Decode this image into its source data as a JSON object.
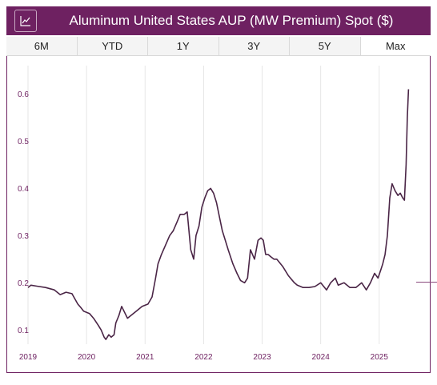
{
  "header": {
    "title": "Aluminum United States AUP (MW Premium) Spot ($)",
    "icon": "line-chart-icon"
  },
  "tabs": [
    {
      "label": "6M",
      "active": false
    },
    {
      "label": "YTD",
      "active": false
    },
    {
      "label": "1Y",
      "active": false
    },
    {
      "label": "3Y",
      "active": false
    },
    {
      "label": "5Y",
      "active": false
    },
    {
      "label": "Max",
      "active": true
    }
  ],
  "colors": {
    "brand": "#6e2161",
    "line": "#4a2546",
    "tick_label": "#6e2161",
    "grid": "#e6e6e6"
  },
  "chart_data": {
    "type": "line",
    "title": "",
    "xlabel": "",
    "ylabel": "",
    "x_ticks": [
      "2019",
      "2020",
      "2021",
      "2022",
      "2023",
      "2024",
      "2025"
    ],
    "y_ticks": [
      0.1,
      0.2,
      0.3,
      0.4,
      0.5,
      0.6
    ],
    "xlim": [
      2019.0,
      2025.7
    ],
    "ylim": [
      0.07,
      0.66
    ],
    "grid": true,
    "legend": "none",
    "series": [
      {
        "x": [
          2019.0,
          2019.05,
          2019.15,
          2019.3,
          2019.45,
          2019.55,
          2019.65,
          2019.75,
          2019.85,
          2019.9,
          2019.95,
          2020.05,
          2020.12,
          2020.2,
          2020.25,
          2020.3,
          2020.33,
          2020.38,
          2020.42,
          2020.47,
          2020.5,
          2020.55,
          2020.6,
          2020.7,
          2020.75,
          2020.85,
          2020.95,
          2021.05,
          2021.12,
          2021.18,
          2021.22,
          2021.28,
          2021.35,
          2021.42,
          2021.48,
          2021.55,
          2021.6,
          2021.67,
          2021.72,
          2021.78,
          2021.83,
          2021.87,
          2021.92,
          2021.97,
          2022.02,
          2022.07,
          2022.12,
          2022.17,
          2022.22,
          2022.27,
          2022.32,
          2022.37,
          2022.42,
          2022.5,
          2022.57,
          2022.63,
          2022.7,
          2022.75,
          2022.8,
          2022.87,
          2022.93,
          2022.98,
          2023.02,
          2023.06,
          2023.1,
          2023.15,
          2023.2,
          2023.25,
          2023.35,
          2023.45,
          2023.55,
          2023.6,
          2023.7,
          2023.8,
          2023.9,
          2024.0,
          2024.1,
          2024.17,
          2024.25,
          2024.3,
          2024.4,
          2024.5,
          2024.6,
          2024.7,
          2024.78,
          2024.85,
          2024.92,
          2024.98,
          2025.02,
          2025.06,
          2025.1,
          2025.14,
          2025.18,
          2025.22,
          2025.27,
          2025.32,
          2025.36,
          2025.4,
          2025.43,
          2025.46,
          2025.48,
          2025.5
        ],
        "y": [
          0.19,
          0.195,
          0.193,
          0.19,
          0.185,
          0.175,
          0.18,
          0.177,
          0.155,
          0.148,
          0.14,
          0.135,
          0.125,
          0.11,
          0.1,
          0.085,
          0.08,
          0.09,
          0.085,
          0.09,
          0.115,
          0.13,
          0.15,
          0.125,
          0.13,
          0.14,
          0.15,
          0.155,
          0.17,
          0.21,
          0.24,
          0.26,
          0.28,
          0.3,
          0.31,
          0.33,
          0.345,
          0.345,
          0.35,
          0.27,
          0.25,
          0.3,
          0.32,
          0.36,
          0.38,
          0.395,
          0.4,
          0.39,
          0.37,
          0.34,
          0.31,
          0.29,
          0.27,
          0.24,
          0.22,
          0.205,
          0.2,
          0.21,
          0.27,
          0.25,
          0.29,
          0.295,
          0.29,
          0.26,
          0.26,
          0.255,
          0.25,
          0.25,
          0.235,
          0.215,
          0.2,
          0.195,
          0.19,
          0.19,
          0.192,
          0.2,
          0.185,
          0.2,
          0.21,
          0.195,
          0.2,
          0.19,
          0.19,
          0.2,
          0.185,
          0.2,
          0.22,
          0.21,
          0.225,
          0.24,
          0.26,
          0.3,
          0.38,
          0.41,
          0.395,
          0.385,
          0.39,
          0.38,
          0.375,
          0.45,
          0.55,
          0.61
        ]
      }
    ]
  }
}
